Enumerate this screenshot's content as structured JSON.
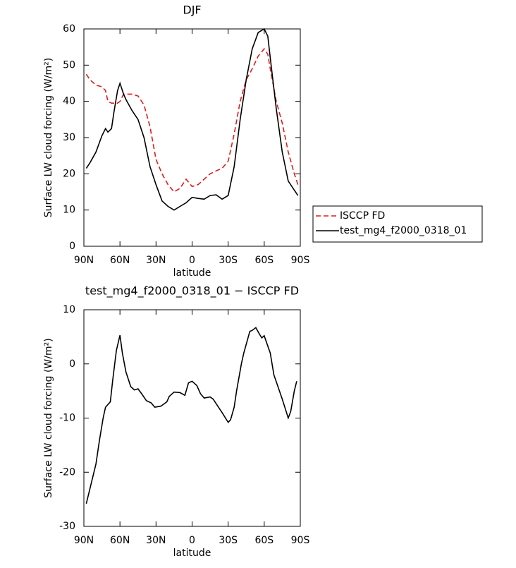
{
  "chart_data": [
    {
      "type": "line",
      "title": "DJF",
      "xlabel": "latitude",
      "ylabel": "Surface LW cloud forcing (W/m²)",
      "x": [
        88,
        85,
        80,
        75,
        72,
        70,
        67,
        65,
        62,
        60,
        57,
        55,
        50,
        45,
        40,
        35,
        30,
        25,
        20,
        15,
        10,
        5,
        0,
        -5,
        -10,
        -15,
        -20,
        -25,
        -30,
        -35,
        -40,
        -45,
        -50,
        -55,
        -60,
        -63,
        -65,
        -70,
        -75,
        -80,
        -85,
        -88
      ],
      "series": [
        {
          "name": "ISCCP FD",
          "color": "#e41a1c",
          "linestyle": "dashed",
          "values": [
            47.5,
            46,
            44.5,
            44,
            43,
            40,
            39.5,
            39.5,
            39.5,
            40,
            42,
            42,
            42,
            41.5,
            39,
            33,
            24,
            20,
            17,
            15,
            16,
            18.5,
            16.5,
            17,
            18.5,
            20,
            20.8,
            21.5,
            23.5,
            31,
            40,
            46,
            49,
            52.5,
            54.5,
            53,
            49,
            40,
            34,
            26,
            20,
            17
          ]
        },
        {
          "name": "test_mg4_f2000_0318_01",
          "color": "#000000",
          "linestyle": "solid",
          "values": [
            21.5,
            23,
            26,
            30.5,
            32.5,
            31.5,
            32.5,
            37,
            43,
            45,
            42,
            40.5,
            37.5,
            35,
            30,
            22,
            17,
            12.5,
            11,
            10,
            11,
            12,
            13.5,
            13.2,
            13,
            14,
            14.2,
            13,
            14,
            22,
            35,
            46,
            54.5,
            59,
            60,
            58,
            52,
            38,
            26,
            18,
            15.5,
            14
          ]
        }
      ],
      "xlim": [
        90,
        -90
      ],
      "xticks": [
        {
          "value": 90,
          "label": "90N"
        },
        {
          "value": 60,
          "label": "60N"
        },
        {
          "value": 30,
          "label": "30N"
        },
        0,
        {
          "value": -30,
          "label": "30S"
        },
        {
          "value": -60,
          "label": "60S"
        },
        {
          "value": -90,
          "label": "90S"
        }
      ],
      "ylim": [
        0,
        60
      ],
      "yticks": [
        0,
        10,
        20,
        30,
        40,
        50,
        60
      ],
      "legend": "outside-right"
    },
    {
      "type": "line",
      "title": "test_mg4_f2000_0318_01 − ISCCP FD",
      "xlabel": "latitude",
      "ylabel": "Surface LW cloud forcing (W/m²)",
      "x": [
        88,
        80,
        77,
        74,
        72,
        68,
        66,
        63,
        60,
        58,
        55,
        51,
        48,
        45,
        42,
        38,
        34,
        31,
        26,
        21,
        19,
        15,
        10,
        6,
        3,
        0,
        -4,
        -7,
        -10,
        -15,
        -17.5,
        -25,
        -30,
        -32,
        -35,
        -37,
        -41,
        -43,
        -48,
        -50,
        -53,
        -56,
        -58,
        -60,
        -65,
        -68,
        -75,
        -80,
        -82,
        -85,
        -87
      ],
      "values": [
        -25.8,
        -18.5,
        -14,
        -10,
        -8,
        -7,
        -3,
        2.5,
        5.3,
        2,
        -1.5,
        -4.2,
        -4.8,
        -4.6,
        -5.5,
        -6.8,
        -7.2,
        -8,
        -7.8,
        -7,
        -6,
        -5.2,
        -5.3,
        -5.8,
        -3.5,
        -3.2,
        -4,
        -5.5,
        -6.3,
        -6.1,
        -6.5,
        -9,
        -10.8,
        -10.3,
        -8,
        -5,
        0,
        2,
        6,
        6.2,
        6.7,
        5.5,
        4.8,
        5.2,
        2,
        -2,
        -6.5,
        -10,
        -8.8,
        -5,
        -3.2
      ],
      "color": "#000000",
      "xlim": [
        90,
        -90
      ],
      "xticks": [
        {
          "value": 90,
          "label": "90N"
        },
        {
          "value": 60,
          "label": "60N"
        },
        {
          "value": 30,
          "label": "30N"
        },
        0,
        {
          "value": -30,
          "label": "30S"
        },
        {
          "value": -60,
          "label": "60S"
        },
        {
          "value": -90,
          "label": "90S"
        }
      ],
      "ylim": [
        -30,
        10
      ],
      "yticks": [
        -30,
        -20,
        -10,
        0,
        10
      ]
    }
  ]
}
